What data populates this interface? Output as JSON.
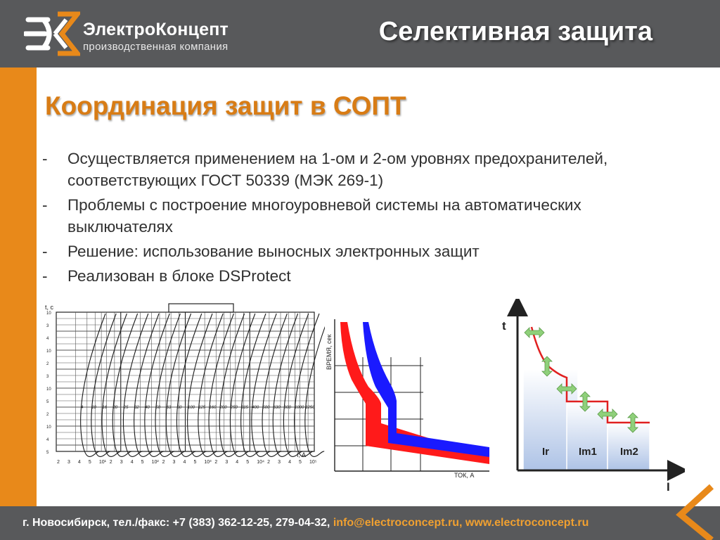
{
  "header": {
    "brand_name": "ЭлектроКонцепт",
    "brand_subtitle": "производственная компания",
    "page_title": "Селективная защита"
  },
  "section_title": "Координация защит в СОПТ",
  "bullets": [
    "Осуществляется применением  на 1-ом и 2-ом уровнях предохранителей, соответствующих  ГОСТ 50339 (МЭК 269-1)",
    "Проблемы с построение многоуровневой системы на автоматических выключателях",
    "Решение: использование выносных электронных защит",
    "Реализован в блоке DSProtect"
  ],
  "figures": {
    "fuse_chart": {
      "ratings": [
        "4",
        "10",
        "16",
        "20",
        "25",
        "32",
        "40",
        "50",
        "63",
        "80",
        "100",
        "125",
        "160",
        "200",
        "250",
        "315",
        "400",
        "500",
        "630",
        "800",
        "1000",
        "1250"
      ],
      "x_unit": "I, A",
      "y_unit": "t, c",
      "x_ticks": [
        "2",
        "3",
        "4",
        "5",
        "10¹",
        "2",
        "3",
        "4",
        "5",
        "10²",
        "2",
        "3",
        "4",
        "5",
        "10³",
        "2",
        "3",
        "4",
        "5",
        "10⁴",
        "2",
        "3",
        "4",
        "5",
        "10⁵"
      ]
    },
    "time_current": {
      "y_label": "ВРЕМЯ, сек",
      "x_label": "ТОК, А",
      "colors": {
        "first": "#ff1a1a",
        "second": "#1a1aff"
      }
    },
    "ladder": {
      "axis_y": "t",
      "axis_x": "I",
      "zones": [
        "Ir",
        "Im1",
        "Im2"
      ],
      "colors": {
        "curve": "#e02020",
        "arrows": "#8fd07a"
      }
    }
  },
  "footer": {
    "address": "г. Новосибирск,  тел./факс: +7 (383) 362-12-25, 279-04-32,",
    "email": "info@electroconcept.ru",
    "separator": ",",
    "website": "www.electroconcept.ru"
  }
}
